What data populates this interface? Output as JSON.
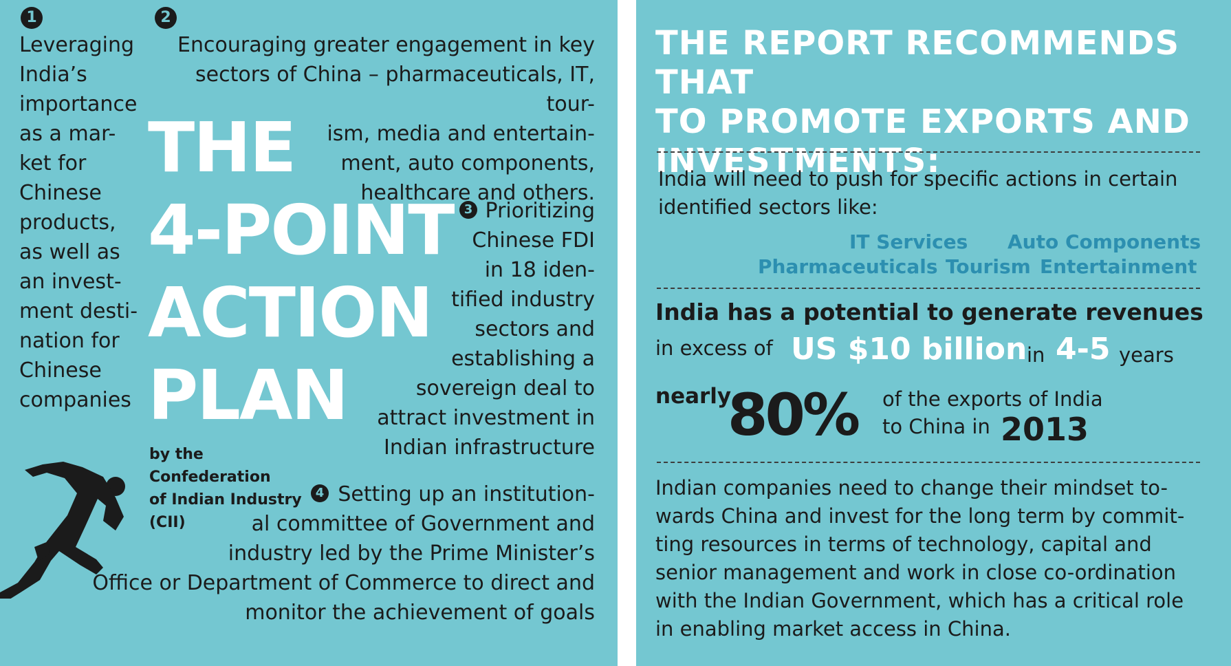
{
  "left": {
    "markers": [
      "1",
      "2",
      "3",
      "4"
    ],
    "point1": "Leveraging\nIndia’s\nimportance\nas a mar-\nket for\nChinese\nproducts,\nas well as\nan invest-\nment desti-\nnation for\nChinese\ncompanies",
    "point2": "Encouraging greater engagement in key\nsectors of China – pharmaceuticals, IT, tour-\nism, media and entertain-\nment, auto components,\nhealthcare and others.",
    "point3_first": "Prioritizing",
    "point3_rest": "Chinese FDI\nin 18 iden-\ntified industry\nsectors and\nestablishing a\nsovereign deal to\nattract investment in\nIndian infrastructure",
    "point4_first": "Setting up an institution-",
    "point4_rest": "al committee of Government and\nindustry led by the Prime Minister’s\nOffice or Department of Commerce to direct and\nmonitor the achievement of goals",
    "title_lines": [
      "THE",
      "4-POINT",
      "ACTION",
      "PLAN"
    ],
    "credit": "by the Confederation\nof Indian Industry\n(CII)"
  },
  "right": {
    "heading": "THE REPORT RECOMMENDS THAT\nTO PROMOTE EXPORTS AND\nINVESTMENTS:",
    "intro": "India will need to push for specific actions in certain\nidentified sectors like:",
    "sectors": [
      "IT Services",
      "Auto Components",
      "Pharmaceuticals",
      "Tourism",
      "Entertainment"
    ],
    "potential_bold": "India has a potential to generate revenues",
    "excess_prefix": "in excess of",
    "amount": "US $10 billion",
    "in_word": "in",
    "period": "4-5",
    "years_word": "years",
    "nearly": "nearly",
    "percent": "80%",
    "exports_line1": "of the exports of India",
    "exports_line2": "to China in",
    "year": "2013",
    "closing": "Indian companies need to change their mindset to-\nwards China and invest for the long term by commit-\nting resources in terms of technology, capital and\nsenior management and work in close co-ordination\nwith the Indian Government, which has a critical role\nin enabling market access in China."
  },
  "colors": {
    "panel": "#74c7d1",
    "text": "#1b1b1b",
    "title": "#ffffff",
    "sector": "#2c8fb0"
  }
}
